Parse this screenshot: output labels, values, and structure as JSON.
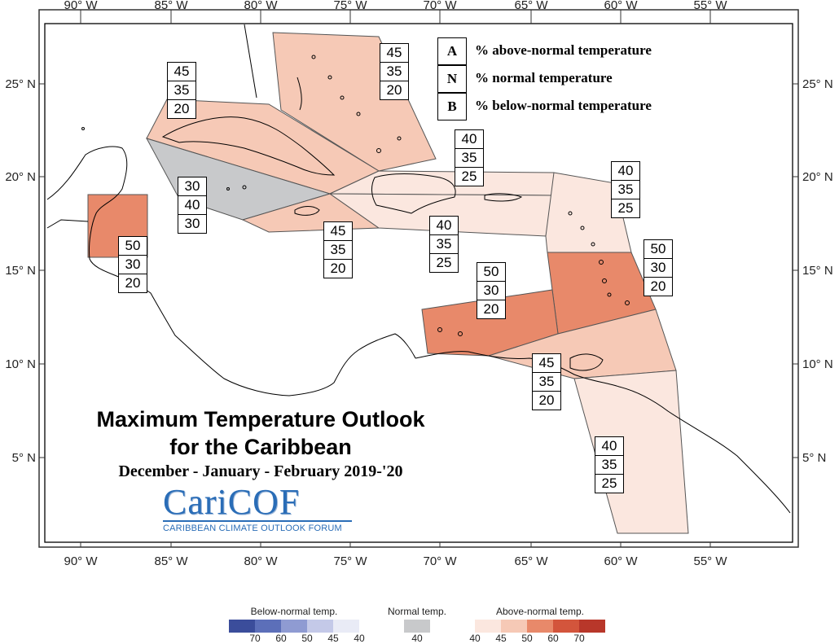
{
  "title": {
    "line1": "Maximum Temperature Outlook",
    "line2": "for the Caribbean",
    "season": "December - January - February 2019-'20"
  },
  "logo": {
    "wordmark": "CariCOF",
    "tagline": "CARIBBEAN CLIMATE OUTLOOK FORUM"
  },
  "key": {
    "rows": [
      {
        "letter": "A",
        "text": "% above-normal temperature"
      },
      {
        "letter": "N",
        "text": "% normal temperature"
      },
      {
        "letter": "B",
        "text": "% below-normal temperature"
      }
    ]
  },
  "axes": {
    "top": [
      "90° W",
      "85° W",
      "80° W",
      "75° W",
      "70° W",
      "65° W",
      "60° W",
      "55° W"
    ],
    "bottom": [
      "90° W",
      "85° W",
      "80° W",
      "75° W",
      "70° W",
      "65° W",
      "60° W",
      "55° W"
    ],
    "left": [
      "25° N",
      "20° N",
      "15° N",
      "10° N",
      "5° N"
    ],
    "right": [
      "25° N",
      "20° N",
      "15° N",
      "10° N",
      "5° N"
    ]
  },
  "regions": [
    {
      "name": "bahamas",
      "A": "45",
      "N": "35",
      "B": "20",
      "color": "#f6c9b6"
    },
    {
      "name": "cuba",
      "A": "45",
      "N": "35",
      "B": "20",
      "color": "#f6c9b6"
    },
    {
      "name": "cayman-western",
      "A": "30",
      "N": "40",
      "B": "30",
      "color": "#c8c9cb"
    },
    {
      "name": "belize",
      "A": "50",
      "N": "30",
      "B": "20",
      "color": "#e8896a"
    },
    {
      "name": "jamaica",
      "A": "45",
      "N": "35",
      "B": "20",
      "color": "#f6c9b6"
    },
    {
      "name": "hispaniola-north",
      "A": "40",
      "N": "35",
      "B": "25",
      "color": "#fbe7df"
    },
    {
      "name": "hispaniola-south",
      "A": "40",
      "N": "35",
      "B": "25",
      "color": "#fbe7df"
    },
    {
      "name": "leeward-islands",
      "A": "40",
      "N": "35",
      "B": "25",
      "color": "#fbe7df"
    },
    {
      "name": "windward-islands",
      "A": "50",
      "N": "30",
      "B": "20",
      "color": "#e8896a"
    },
    {
      "name": "abc-islands",
      "A": "50",
      "N": "30",
      "B": "20",
      "color": "#e8896a"
    },
    {
      "name": "trinidad",
      "A": "45",
      "N": "35",
      "B": "20",
      "color": "#f6c9b6"
    },
    {
      "name": "guianas",
      "A": "40",
      "N": "35",
      "B": "25",
      "color": "#fbe7df"
    }
  ],
  "colorbar": {
    "below": {
      "title": "Below-normal temp.",
      "colors": [
        "#3b4d9b",
        "#5c6fb9",
        "#8f9bd2",
        "#c4c9e8",
        "#e9ebf6"
      ],
      "ticks": [
        "70",
        "60",
        "50",
        "45",
        "40"
      ]
    },
    "normal": {
      "title": "Normal temp.",
      "colors": [
        "#c8c9cb"
      ],
      "ticks": [
        "40"
      ]
    },
    "above": {
      "title": "Above-normal temp.",
      "colors": [
        "#fbe7df",
        "#f6c9b6",
        "#e8896a",
        "#d3553c",
        "#b8372a"
      ],
      "ticks": [
        "40",
        "45",
        "50",
        "60",
        "70"
      ]
    }
  }
}
